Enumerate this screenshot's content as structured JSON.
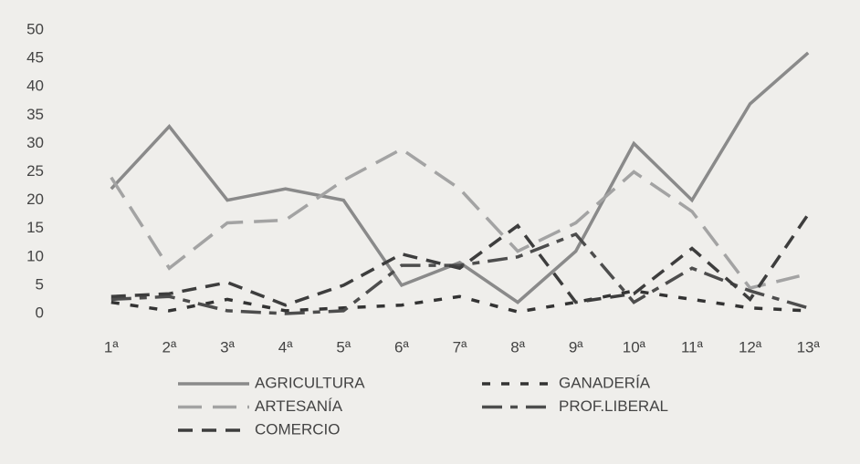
{
  "chart_data": {
    "type": "line",
    "categories": [
      "1ª",
      "2ª",
      "3ª",
      "4ª",
      "5ª",
      "6ª",
      "7ª",
      "8ª",
      "9ª",
      "10ª",
      "11ª",
      "12ª",
      "13ª"
    ],
    "series": [
      {
        "name": "AGRICULTURA",
        "color": "#8a8a8a",
        "dash": "solid",
        "values": [
          22,
          33,
          20,
          22,
          20,
          5,
          9,
          2,
          11,
          30,
          20,
          37,
          46
        ]
      },
      {
        "name": "GANADERÍA",
        "color": "#333333",
        "dash": "short",
        "values": [
          2,
          0.5,
          2.5,
          0.5,
          1,
          1.5,
          3,
          0.3,
          2,
          4,
          2.5,
          1,
          0.5
        ]
      },
      {
        "name": "ARTESANÍA",
        "color": "#a3a3a3",
        "dash": "long",
        "values": [
          24,
          8,
          16,
          16.5,
          23.5,
          29,
          22,
          11,
          16,
          25,
          18,
          4.5,
          7
        ]
      },
      {
        "name": "PROF.LIBERAL",
        "color": "#4d4d4d",
        "dash": "dashdot",
        "values": [
          2.5,
          3,
          0.5,
          0,
          0.5,
          8.5,
          8.5,
          10,
          14,
          2,
          8,
          4,
          1
        ]
      },
      {
        "name": "COMERCIO",
        "color": "#3d3d3d",
        "dash": "medium",
        "values": [
          3,
          3.5,
          5.5,
          1.5,
          5,
          10.5,
          8,
          15.5,
          2,
          3.5,
          11.5,
          2.5,
          17.5
        ]
      }
    ],
    "ylim": [
      0,
      50
    ],
    "yticks": [
      0,
      5,
      10,
      15,
      20,
      25,
      30,
      35,
      40,
      45,
      50
    ],
    "grid": false,
    "legend": "bottom"
  }
}
